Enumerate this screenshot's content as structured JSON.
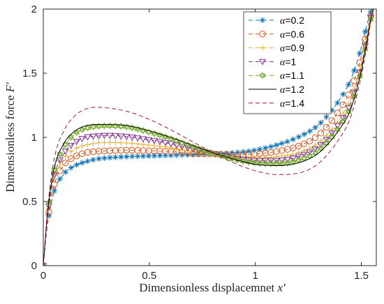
{
  "chart_data": {
    "type": "line",
    "xlabel_text": "Dimensionless displacemnet ",
    "xlabel_var": "x′",
    "ylabel_text": "Dimensionless force ",
    "ylabel_var": "F′",
    "xlim": [
      0,
      1.5708
    ],
    "ylim": [
      0,
      2
    ],
    "xticks": [
      0,
      0.5,
      1,
      1.5
    ],
    "xtick_labels": [
      "0",
      "0.5",
      "1",
      "1.5"
    ],
    "yticks": [
      0,
      0.5,
      1,
      1.5,
      2
    ],
    "ytick_labels": [
      "0",
      "0.5",
      "1",
      "1.5",
      "2"
    ],
    "grid": false,
    "legend_position": "top-right",
    "x": [
      0,
      0.02,
      0.05,
      0.1,
      0.15,
      0.2,
      0.25,
      0.3,
      0.4,
      0.5,
      0.6,
      0.7,
      0.8,
      0.9,
      1.0,
      1.1,
      1.2,
      1.3,
      1.4,
      1.45,
      1.5,
      1.53,
      1.55,
      1.5708
    ],
    "series": [
      {
        "name": "α=0.2",
        "color": "#0072BD",
        "marker": "asterisk",
        "dash": "6,4",
        "values": [
          0,
          0.32,
          0.57,
          0.72,
          0.78,
          0.81,
          0.83,
          0.84,
          0.85,
          0.855,
          0.86,
          0.865,
          0.87,
          0.88,
          0.9,
          0.94,
          1.0,
          1.1,
          1.3,
          1.45,
          1.7,
          1.9,
          2.0,
          2.05
        ]
      },
      {
        "name": "α=0.6",
        "color": "#D95319",
        "marker": "circle",
        "dash": "6,4",
        "values": [
          0,
          0.34,
          0.62,
          0.79,
          0.85,
          0.88,
          0.89,
          0.895,
          0.9,
          0.895,
          0.89,
          0.875,
          0.87,
          0.865,
          0.87,
          0.89,
          0.93,
          1.02,
          1.22,
          1.37,
          1.63,
          1.85,
          1.98,
          2.05
        ]
      },
      {
        "name": "α=0.9",
        "color": "#EDB120",
        "marker": "plus",
        "dash": "6,4",
        "values": [
          0,
          0.36,
          0.66,
          0.84,
          0.91,
          0.94,
          0.955,
          0.96,
          0.955,
          0.94,
          0.92,
          0.89,
          0.87,
          0.85,
          0.84,
          0.85,
          0.88,
          0.96,
          1.15,
          1.3,
          1.58,
          1.82,
          1.97,
          2.05
        ]
      },
      {
        "name": "α=1",
        "color": "#7E2F8E",
        "marker": "triangle-down",
        "dash": "6,4",
        "values": [
          0,
          0.38,
          0.69,
          0.88,
          0.96,
          1.0,
          1.01,
          1.015,
          1.005,
          0.98,
          0.95,
          0.91,
          0.875,
          0.84,
          0.82,
          0.82,
          0.85,
          0.93,
          1.12,
          1.27,
          1.56,
          1.81,
          1.97,
          2.05
        ]
      },
      {
        "name": "α=1.1",
        "color": "#77AC30",
        "marker": "hexagram",
        "dash": "6,4",
        "values": [
          0,
          0.4,
          0.73,
          0.93,
          1.03,
          1.07,
          1.085,
          1.09,
          1.08,
          1.04,
          0.99,
          0.93,
          0.875,
          0.83,
          0.8,
          0.795,
          0.82,
          0.9,
          1.09,
          1.24,
          1.53,
          1.79,
          1.96,
          2.05
        ]
      },
      {
        "name": "α=1.2",
        "color": "#000000",
        "marker": "none",
        "dash": "",
        "values": [
          0,
          0.41,
          0.75,
          0.96,
          1.05,
          1.09,
          1.1,
          1.1,
          1.09,
          1.05,
          1.0,
          0.94,
          0.88,
          0.83,
          0.79,
          0.78,
          0.8,
          0.88,
          1.07,
          1.22,
          1.52,
          1.78,
          1.96,
          2.05
        ]
      },
      {
        "name": "α=1.4",
        "color": "#A2142F",
        "marker": "none",
        "dash": "6,4",
        "values": [
          0,
          0.44,
          0.82,
          1.06,
          1.17,
          1.22,
          1.235,
          1.23,
          1.2,
          1.14,
          1.06,
          0.97,
          0.88,
          0.8,
          0.74,
          0.71,
          0.72,
          0.8,
          1.0,
          1.16,
          1.48,
          1.75,
          1.95,
          2.05
        ]
      }
    ]
  }
}
